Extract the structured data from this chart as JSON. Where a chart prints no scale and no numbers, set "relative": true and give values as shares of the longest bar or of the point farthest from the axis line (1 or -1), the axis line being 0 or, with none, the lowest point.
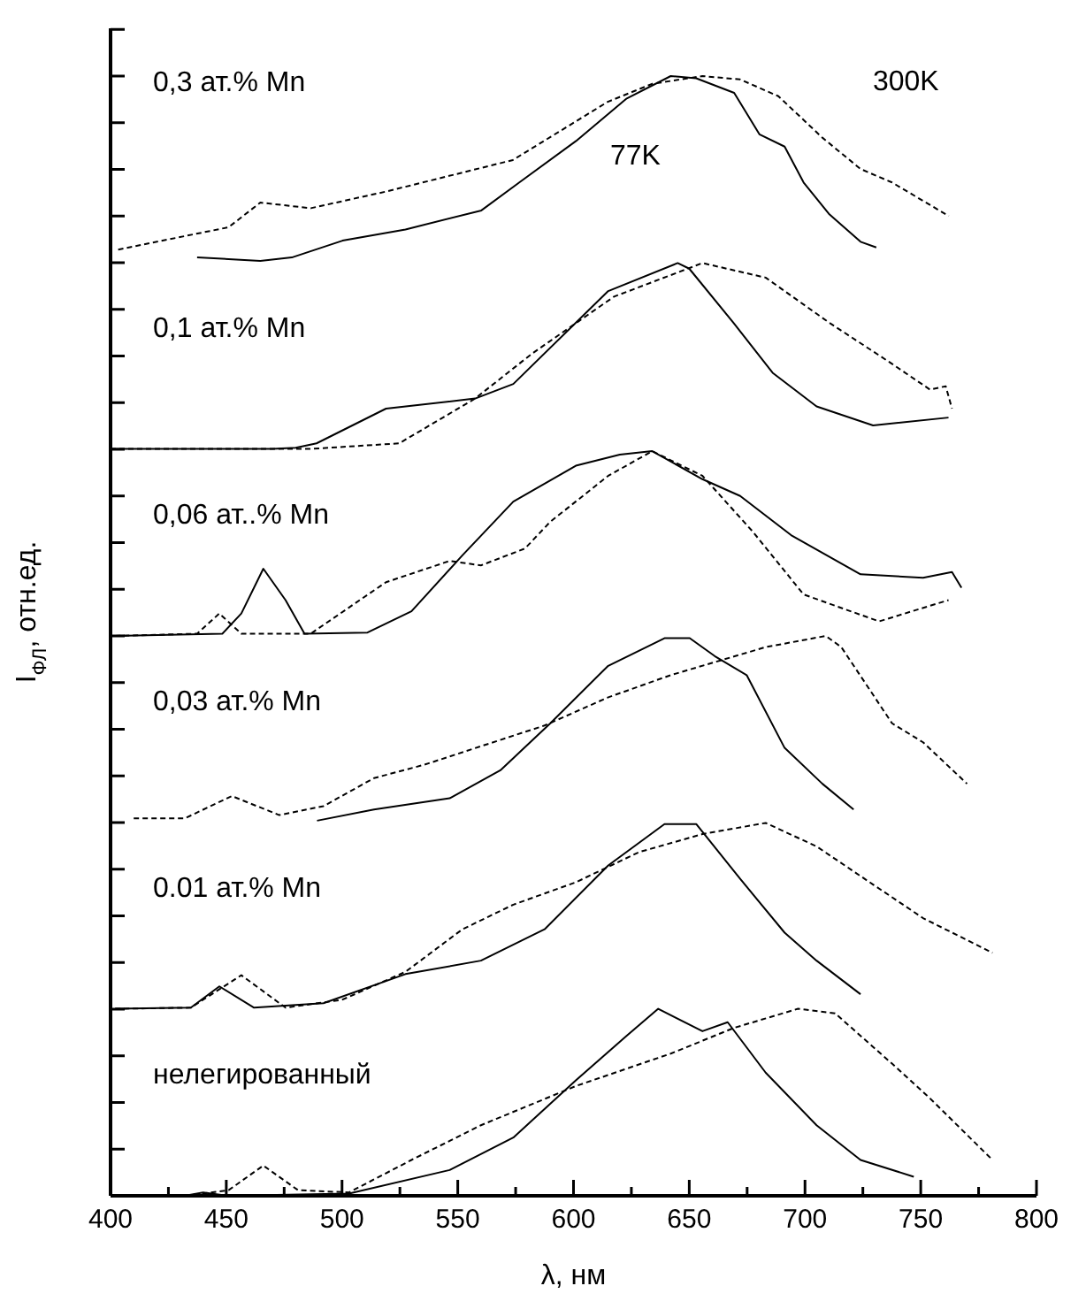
{
  "chart_data": {
    "type": "line",
    "relative": true,
    "xlabel": "λ, нм",
    "ylabel": "I$_{ФЛ}$, отн.ед.",
    "annotations": [
      "0,3 ат.% Mn",
      "0,1 ат.% Mn",
      "0,06 ат..% Mn",
      "0,03 ат.% Mn",
      "0.01 ат.% Mn",
      "нелегированный"
    ],
    "xlim": [
      400,
      800
    ],
    "xticks": [
      400,
      {
        "value": 425,
        "label": null
      },
      450,
      {
        "value": 475,
        "label": null
      },
      500,
      {
        "value": 525,
        "label": null
      },
      550,
      {
        "value": 575,
        "label": null
      },
      600,
      {
        "value": 625,
        "label": null
      },
      650,
      {
        "value": 675,
        "label": null
      },
      700,
      {
        "value": 725,
        "label": null
      },
      750,
      {
        "value": 775,
        "label": null
      },
      800
    ],
    "tick_labels": "x",
    "series": [
      {
        "name": "77K",
        "color": "#000000",
        "line_style": "solid",
        "x": [
          437.4,
          464.7,
          478.3,
          500.2,
          527.4,
          560.2,
          576.6,
          601.1,
          623,
          642,
          653,
          669.4,
          680.3,
          691.2,
          699.4,
          710.3,
          724,
          730.8
        ],
        "values": [
          0.838,
          0.835,
          0.838,
          0.853,
          0.863,
          0.88,
          0.905,
          0.942,
          0.98,
          1.0,
          0.998,
          0.985,
          0.948,
          0.937,
          0.905,
          0.877,
          0.852,
          0.847
        ]
      },
      {
        "name": "300K",
        "color": "#000000",
        "line_style": "dashed",
        "x": [
          403.3,
          451,
          464.7,
          486.5,
          519.3,
          573.8,
          614.8,
          633.9,
          655.7,
          672,
          688.5,
          707.5,
          724,
          737.6,
          762.1
        ],
        "values": [
          0.845,
          0.865,
          0.887,
          0.882,
          0.897,
          0.925,
          0.977,
          0.993,
          1.0,
          0.997,
          0.982,
          0.945,
          0.917,
          0.905,
          0.875
        ]
      },
      {
        "color": "#000000",
        "line_style": "solid",
        "x": [
          400,
          470,
          480,
          489,
          519,
          557.5,
          574,
          615,
          645,
          650,
          669,
          686,
          705,
          729.4,
          762
        ],
        "values": [
          0.667,
          0.667,
          0.668,
          0.672,
          0.703,
          0.712,
          0.725,
          0.808,
          0.833,
          0.828,
          0.78,
          0.735,
          0.705,
          0.688,
          0.695
        ]
      },
      {
        "color": "#000000",
        "line_style": "dashed",
        "x": [
          400,
          486,
          524.7,
          557.5,
          582,
          617.5,
          655.7,
          683,
          710.3,
          737.6,
          754,
          760.8,
          763.5
        ],
        "values": [
          0.667,
          0.667,
          0.672,
          0.712,
          0.752,
          0.803,
          0.833,
          0.82,
          0.78,
          0.743,
          0.72,
          0.723,
          0.703
        ]
      },
      {
        "color": "#000000",
        "line_style": "solid",
        "x": [
          401.9,
          448.3,
          456.5,
          466,
          475.6,
          483.8,
          511,
          530,
          552,
          574,
          601,
          620,
          634,
          655.7,
          672,
          694,
          724,
          751,
          763.5,
          767.6
        ],
        "values": [
          0.5,
          0.502,
          0.52,
          0.56,
          0.532,
          0.502,
          0.503,
          0.522,
          0.572,
          0.62,
          0.652,
          0.662,
          0.665,
          0.64,
          0.625,
          0.59,
          0.555,
          0.552,
          0.557,
          0.543
        ]
      },
      {
        "color": "#000000",
        "line_style": "dashed",
        "x": [
          402,
          437.4,
          447,
          456.5,
          486.5,
          519,
          546.5,
          560,
          579,
          590,
          615,
          634,
          655.7,
          677.5,
          699.4,
          732,
          762
        ],
        "values": [
          0.5,
          0.502,
          0.52,
          0.502,
          0.502,
          0.548,
          0.567,
          0.563,
          0.578,
          0.602,
          0.643,
          0.665,
          0.643,
          0.593,
          0.537,
          0.513,
          0.532
        ]
      },
      {
        "color": "#000000",
        "line_style": "solid",
        "x": [
          489.2,
          513.8,
          546.5,
          568.4,
          590,
          614.8,
          639.3,
          650.2,
          661,
          674.8,
          691.2,
          707.5,
          721
        ],
        "values": [
          0.335,
          0.345,
          0.355,
          0.38,
          0.422,
          0.473,
          0.498,
          0.498,
          0.482,
          0.465,
          0.4,
          0.368,
          0.345
        ]
      },
      {
        "color": "#000000",
        "line_style": "dashed",
        "x": [
          410,
          432,
          452.4,
          472.9,
          492,
          513.8,
          535.6,
          587.5,
          614.8,
          642,
          683,
          709,
          715.7,
          737.6,
          751,
          770
        ],
        "values": [
          0.337,
          0.337,
          0.357,
          0.34,
          0.348,
          0.373,
          0.385,
          0.42,
          0.445,
          0.465,
          0.49,
          0.5,
          0.49,
          0.422,
          0.405,
          0.368
        ]
      },
      {
        "color": "#000000",
        "line_style": "solid",
        "x": [
          402,
          434.7,
          447,
          462,
          492,
          527.4,
          560,
          587.5,
          615,
          639.3,
          653,
          672,
          691.2,
          705,
          724
        ],
        "values": [
          0.167,
          0.168,
          0.187,
          0.168,
          0.172,
          0.198,
          0.21,
          0.238,
          0.295,
          0.332,
          0.332,
          0.283,
          0.235,
          0.21,
          0.18
        ]
      },
      {
        "color": "#000000",
        "line_style": "dashed",
        "x": [
          402,
          434.7,
          456.5,
          475.6,
          500,
          527.4,
          552,
          574,
          601,
          628.4,
          655.7,
          683,
          705,
          729.4,
          751,
          781
        ],
        "values": [
          0.167,
          0.168,
          0.197,
          0.168,
          0.175,
          0.2,
          0.238,
          0.26,
          0.28,
          0.307,
          0.323,
          0.333,
          0.312,
          0.278,
          0.248,
          0.217
        ]
      },
      {
        "color": "#000000",
        "line_style": "solid",
        "x": [
          432,
          440,
          451,
          503,
          546.5,
          574,
          601,
          623,
          636.6,
          655.7,
          666.6,
          683,
          705,
          724,
          747
        ],
        "values": [
          0,
          0.003,
          0,
          0.002,
          0.023,
          0.052,
          0.103,
          0.143,
          0.167,
          0.147,
          0.155,
          0.11,
          0.063,
          0.032,
          0.017
        ]
      },
      {
        "color": "#000000",
        "line_style": "dashed",
        "x": [
          432,
          451,
          466,
          481,
          503,
          530,
          560,
          601,
          642,
          669.4,
          697,
          713,
          737.6,
          754,
          781
        ],
        "values": [
          0,
          0.005,
          0.027,
          0.005,
          0.003,
          0.032,
          0.063,
          0.098,
          0.127,
          0.15,
          0.167,
          0.163,
          0.118,
          0.087,
          0.032
        ]
      }
    ]
  }
}
